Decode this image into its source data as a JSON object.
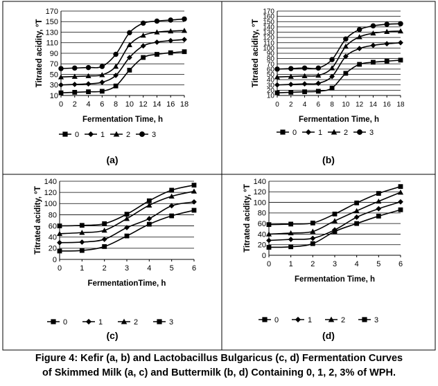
{
  "chart_data": [
    {
      "type": "line",
      "panel_label": "(a)",
      "xlabel": "Fermentation Time, h",
      "ylabel": "Titrated acidity, °T",
      "x": [
        0,
        2,
        4,
        6,
        8,
        10,
        12,
        14,
        16,
        18
      ],
      "xticks": [
        "0",
        "2",
        "4",
        "6",
        "8",
        "10",
        "12",
        "14",
        "16",
        "18"
      ],
      "yticks": [
        "10",
        "30",
        "50",
        "70",
        "90",
        "110",
        "130",
        "150",
        "170"
      ],
      "ylim": [
        10,
        170
      ],
      "grid": "horizontal",
      "legend_position": "bottom",
      "series": [
        {
          "name": "0",
          "marker": "square",
          "values": [
            15,
            16,
            17,
            18,
            28,
            58,
            82,
            88,
            91,
            93
          ]
        },
        {
          "name": "1",
          "marker": "diamond",
          "values": [
            30,
            31,
            32,
            35,
            48,
            82,
            104,
            111,
            114,
            116
          ]
        },
        {
          "name": "2",
          "marker": "triangle",
          "values": [
            45,
            46,
            47,
            49,
            65,
            106,
            124,
            130,
            132,
            133
          ]
        },
        {
          "name": "3",
          "marker": "circle",
          "values": [
            61,
            62,
            63,
            65,
            88,
            129,
            147,
            151,
            153,
            155
          ]
        }
      ]
    },
    {
      "type": "line",
      "panel_label": "(b)",
      "xlabel": "Fermentation Time, h",
      "ylabel": "Titrated acidity, °T",
      "x": [
        0,
        2,
        4,
        6,
        8,
        10,
        12,
        14,
        16,
        18
      ],
      "xticks": [
        "0",
        "2",
        "4",
        "6",
        "8",
        "10",
        "12",
        "14",
        "16",
        "18"
      ],
      "yticks": [
        "10",
        "20",
        "30",
        "40",
        "50",
        "60",
        "70",
        "80",
        "90",
        "100",
        "110",
        "120",
        "130",
        "140",
        "150",
        "160",
        "170"
      ],
      "ylim": [
        10,
        170
      ],
      "grid": "horizontal",
      "legend_position": "bottom",
      "series": [
        {
          "name": "0",
          "marker": "square",
          "values": [
            15,
            16,
            17,
            18,
            24,
            52,
            69,
            73,
            75,
            77
          ]
        },
        {
          "name": "1",
          "marker": "diamond",
          "values": [
            30,
            31,
            32,
            33,
            46,
            84,
            99,
            105,
            108,
            110
          ]
        },
        {
          "name": "2",
          "marker": "triangle",
          "values": [
            45,
            46,
            47,
            48,
            62,
            103,
            121,
            128,
            131,
            132
          ]
        },
        {
          "name": "3",
          "marker": "circle",
          "values": [
            60,
            61,
            62,
            62,
            78,
            117,
            135,
            142,
            145,
            146
          ]
        }
      ]
    },
    {
      "type": "line",
      "panel_label": "(c)",
      "xlabel": "FermentationTime, h",
      "ylabel": "Titrated acidity, °T",
      "x": [
        0,
        1,
        2,
        3,
        4,
        5,
        6
      ],
      "xticks": [
        "0",
        "1",
        "2",
        "3",
        "4",
        "5",
        "6"
      ],
      "yticks": [
        "0",
        "20",
        "40",
        "60",
        "80",
        "100",
        "120",
        "140"
      ],
      "ylim": [
        0,
        140
      ],
      "grid": "horizontal",
      "legend_position": "bottom",
      "series": [
        {
          "name": "0",
          "marker": "square",
          "values": [
            15,
            16,
            23,
            42,
            63,
            78,
            88
          ]
        },
        {
          "name": "1",
          "marker": "diamond",
          "values": [
            30,
            31,
            36,
            57,
            73,
            96,
            103
          ]
        },
        {
          "name": "2",
          "marker": "triangle",
          "values": [
            46,
            48,
            52,
            73,
            97,
            113,
            122
          ]
        },
        {
          "name": "3",
          "marker": "square",
          "values": [
            60,
            61,
            64,
            81,
            105,
            124,
            133
          ]
        }
      ]
    },
    {
      "type": "line",
      "panel_label": "(d)",
      "xlabel": "Fermentation Time, h",
      "ylabel": "Titrated acidity, °T",
      "x": [
        0,
        1,
        2,
        3,
        4,
        5,
        6
      ],
      "xticks": [
        "0",
        "1",
        "2",
        "3",
        "4",
        "5",
        "6"
      ],
      "yticks": [
        "0",
        "20",
        "40",
        "60",
        "80",
        "100",
        "120",
        "140"
      ],
      "ylim": [
        0,
        140
      ],
      "grid": "horizontal",
      "legend_position": "bottom",
      "series": [
        {
          "name": "0",
          "marker": "square",
          "values": [
            15,
            16,
            22,
            45,
            60,
            74,
            86
          ]
        },
        {
          "name": "1",
          "marker": "diamond",
          "values": [
            28,
            30,
            32,
            48,
            72,
            88,
            101
          ]
        },
        {
          "name": "2",
          "marker": "triangle",
          "values": [
            40,
            42,
            45,
            65,
            84,
            102,
            119
          ]
        },
        {
          "name": "3",
          "marker": "square",
          "values": [
            58,
            59,
            61,
            78,
            99,
            117,
            130
          ]
        }
      ]
    }
  ],
  "caption": {
    "line1": "Figure 4: Kefir (a, b) and Lactobacillus Bulgaricus (c, d) Fermentation Curves",
    "line2": "of Skimmed Milk (a, c) and Buttermilk (b, d) Containing 0, 1, 2, 3% of WPH."
  }
}
